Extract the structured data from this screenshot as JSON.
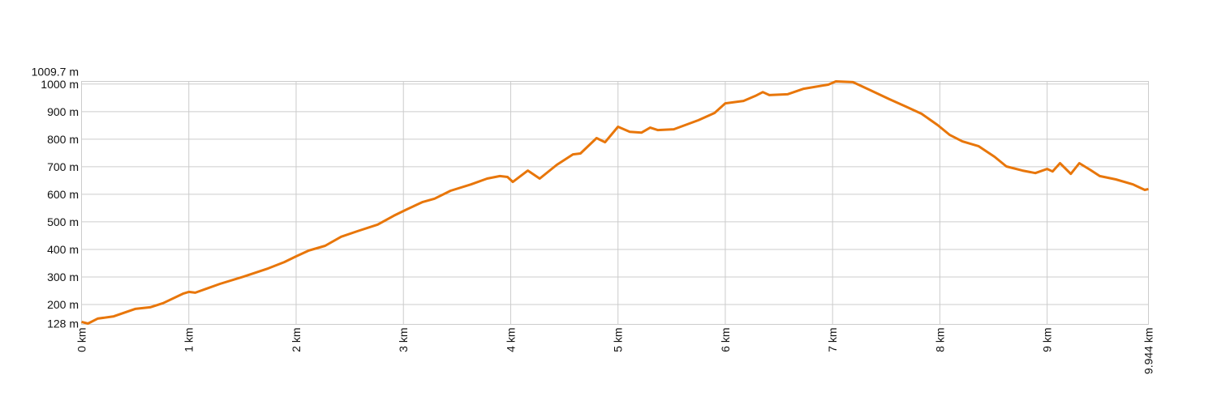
{
  "chart_data": {
    "type": "line",
    "title": "",
    "xlabel": "",
    "ylabel": "",
    "x_unit": "km",
    "y_unit": "m",
    "xlim": [
      0,
      9.944
    ],
    "ylim": [
      128,
      1009.7
    ],
    "grid": true,
    "x_ticks": [
      {
        "value": 0,
        "label": "0 km"
      },
      {
        "value": 1,
        "label": "1 km"
      },
      {
        "value": 2,
        "label": "2 km"
      },
      {
        "value": 3,
        "label": "3 km"
      },
      {
        "value": 4,
        "label": "4 km"
      },
      {
        "value": 5,
        "label": "5 km"
      },
      {
        "value": 6,
        "label": "6 km"
      },
      {
        "value": 7,
        "label": "7 km"
      },
      {
        "value": 8,
        "label": "8 km"
      },
      {
        "value": 9,
        "label": "9 km"
      },
      {
        "value": 9.944,
        "label": "9.944 km"
      }
    ],
    "y_ticks": [
      {
        "value": 128,
        "label": "128 m"
      },
      {
        "value": 200,
        "label": "200 m"
      },
      {
        "value": 300,
        "label": "300 m"
      },
      {
        "value": 400,
        "label": "400 m"
      },
      {
        "value": 500,
        "label": "500 m"
      },
      {
        "value": 600,
        "label": "600 m"
      },
      {
        "value": 700,
        "label": "700 m"
      },
      {
        "value": 800,
        "label": "800 m"
      },
      {
        "value": 900,
        "label": "900 m"
      },
      {
        "value": 1000,
        "label": "1000 m"
      },
      {
        "value": 1009.7,
        "label": "1009.7 m"
      }
    ],
    "colors": {
      "line": "#e8760a",
      "grid": "#cccccc"
    },
    "series": [
      {
        "x": [
          0,
          0.06,
          0.15,
          0.3,
          0.5,
          0.64,
          0.76,
          0.95,
          1.0,
          1.06,
          1.29,
          1.51,
          1.74,
          1.89,
          2.0,
          2.12,
          2.27,
          2.42,
          2.57,
          2.76,
          2.91,
          3.03,
          3.18,
          3.29,
          3.44,
          3.63,
          3.78,
          3.9,
          3.97,
          4.02,
          4.16,
          4.27,
          4.43,
          4.58,
          4.65,
          4.8,
          4.88,
          5.0,
          5.11,
          5.22,
          5.3,
          5.37,
          5.52,
          5.75,
          5.9,
          6.0,
          6.17,
          6.28,
          6.35,
          6.41,
          6.58,
          6.73,
          6.96,
          7.03,
          7.19,
          7.34,
          7.53,
          7.68,
          7.83,
          7.98,
          8.09,
          8.21,
          8.36,
          8.51,
          8.62,
          8.77,
          8.89,
          9.0,
          9.05,
          9.12,
          9.22,
          9.3,
          9.4,
          9.49,
          9.64,
          9.8,
          9.91,
          9.944
        ],
        "y": [
          137,
          131,
          149,
          157,
          184,
          190,
          205,
          240,
          246,
          243,
          275,
          301,
          331,
          354,
          375,
          396,
          413,
          446,
          466,
          490,
          522,
          545,
          572,
          584,
          613,
          636,
          657,
          666,
          663,
          645,
          686,
          657,
          707,
          745,
          748,
          804,
          789,
          845,
          827,
          824,
          842,
          833,
          836,
          869,
          895,
          930,
          939,
          957,
          971,
          960,
          963,
          983,
          998,
          1009.7,
          1007,
          980,
          945,
          919,
          892,
          851,
          816,
          792,
          775,
          736,
          701,
          686,
          677,
          692,
          683,
          713,
          674,
          713,
          689,
          666,
          654,
          636,
          616,
          619
        ]
      }
    ]
  }
}
